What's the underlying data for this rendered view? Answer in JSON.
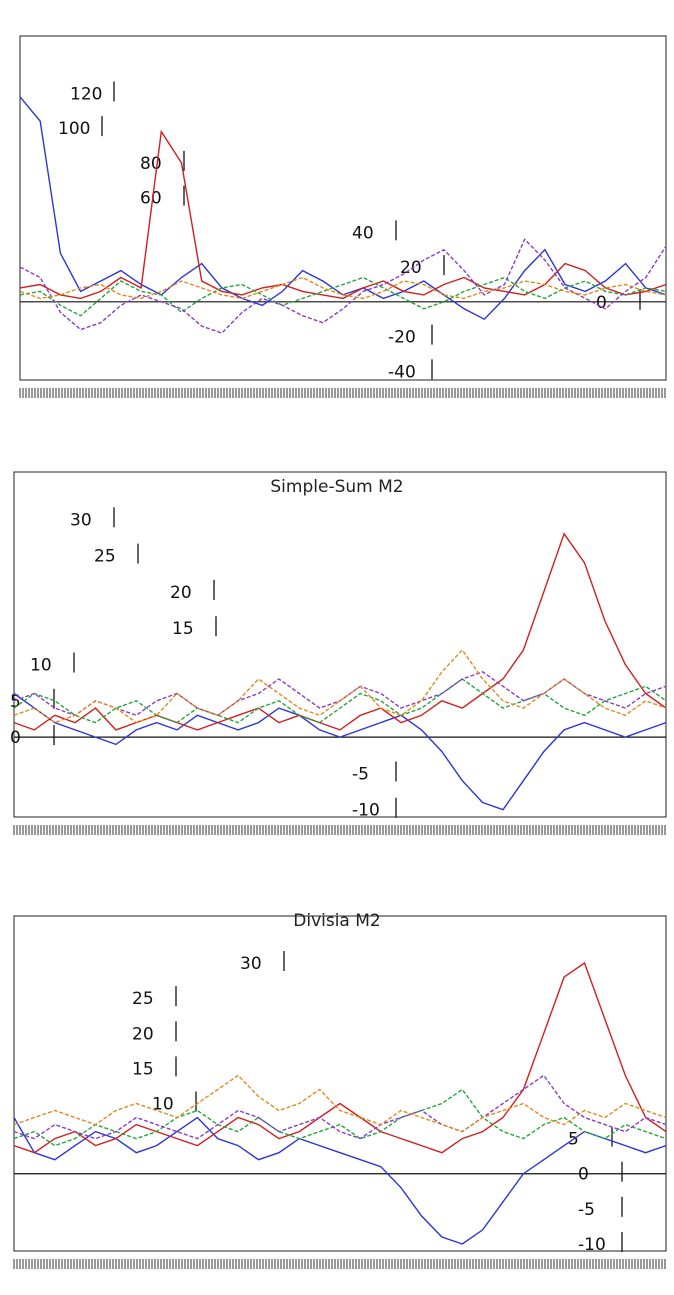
{
  "chart_data": [
    {
      "type": "line",
      "title": "",
      "yticks": [
        "120",
        "100",
        "80",
        "60",
        "40",
        "20",
        "0",
        "-20",
        "-40"
      ],
      "ylim": [
        -45,
        130
      ],
      "grid": false,
      "colors": {
        "blue": "#2b36d6",
        "red": "#d11f1f",
        "green": "#23a63c",
        "purple": "#8a3cc8",
        "orange": "#e08a1e",
        "gray": "#7a7a7a"
      },
      "series": [
        {
          "color": "#2b36d6",
          "values": [
            118,
            104,
            28,
            6,
            12,
            18,
            10,
            4,
            14,
            22,
            8,
            2,
            -2,
            6,
            18,
            12,
            4,
            8,
            2,
            6,
            12,
            4,
            -4,
            -10,
            2,
            18,
            30,
            10,
            6,
            12,
            22,
            8,
            4
          ]
        },
        {
          "color": "#d11f1f",
          "values": [
            8,
            10,
            4,
            2,
            6,
            14,
            8,
            98,
            80,
            12,
            6,
            4,
            8,
            10,
            6,
            4,
            2,
            8,
            12,
            6,
            4,
            10,
            14,
            8,
            6,
            4,
            10,
            22,
            18,
            8,
            4,
            6,
            10
          ]
        },
        {
          "color": "#23a63c",
          "values": [
            4,
            6,
            -2,
            -8,
            2,
            12,
            6,
            4,
            -6,
            2,
            8,
            10,
            4,
            -2,
            2,
            6,
            10,
            14,
            8,
            2,
            -4,
            0,
            6,
            10,
            14,
            6,
            2,
            8,
            12,
            6,
            4,
            8,
            6
          ]
        },
        {
          "color": "#8a3cc8",
          "values": [
            20,
            14,
            -6,
            -16,
            -12,
            -2,
            4,
            0,
            -4,
            -14,
            -18,
            -6,
            2,
            -2,
            -8,
            -12,
            -4,
            6,
            10,
            16,
            24,
            30,
            18,
            4,
            10,
            36,
            24,
            8,
            2,
            -4,
            6,
            14,
            32
          ]
        },
        {
          "color": "#e08a1e",
          "values": [
            6,
            2,
            4,
            8,
            10,
            4,
            2,
            6,
            12,
            8,
            4,
            2,
            6,
            10,
            14,
            8,
            4,
            2,
            6,
            12,
            10,
            4,
            2,
            6,
            8,
            12,
            10,
            6,
            4,
            8,
            10,
            6,
            4
          ]
        }
      ]
    },
    {
      "type": "line",
      "title": "Simple-Sum M2",
      "yticks": [
        "30",
        "25",
        "20",
        "15",
        "10",
        "5",
        "0",
        "-5",
        "-10"
      ],
      "ylim": [
        -11,
        31
      ],
      "grid": false,
      "series": [
        {
          "color": "#2b36d6",
          "values": [
            6,
            4,
            2,
            1,
            0,
            -1,
            1,
            2,
            1,
            3,
            2,
            1,
            2,
            4,
            3,
            1,
            0,
            1,
            2,
            3,
            1,
            -2,
            -6,
            -9,
            -10,
            -6,
            -2,
            1,
            2,
            1,
            0,
            1,
            2
          ]
        },
        {
          "color": "#d11f1f",
          "values": [
            2,
            1,
            3,
            2,
            4,
            1,
            2,
            3,
            2,
            1,
            2,
            3,
            4,
            2,
            3,
            2,
            1,
            3,
            4,
            2,
            3,
            5,
            4,
            6,
            8,
            12,
            20,
            28,
            24,
            16,
            10,
            6,
            4
          ]
        },
        {
          "color": "#23a63c",
          "values": [
            4,
            6,
            5,
            3,
            2,
            4,
            5,
            3,
            2,
            4,
            3,
            2,
            4,
            5,
            3,
            2,
            4,
            6,
            5,
            3,
            4,
            6,
            8,
            6,
            4,
            5,
            6,
            4,
            3,
            5,
            6,
            7,
            5
          ]
        },
        {
          "color": "#8a3cc8",
          "values": [
            5,
            6,
            4,
            3,
            5,
            4,
            3,
            5,
            6,
            4,
            3,
            5,
            6,
            8,
            6,
            4,
            5,
            7,
            6,
            4,
            5,
            6,
            8,
            9,
            7,
            5,
            6,
            8,
            6,
            5,
            4,
            6,
            7
          ]
        },
        {
          "color": "#e08a1e",
          "values": [
            3,
            4,
            2,
            3,
            5,
            4,
            2,
            3,
            6,
            4,
            3,
            5,
            8,
            6,
            4,
            3,
            5,
            7,
            4,
            3,
            5,
            9,
            12,
            8,
            5,
            4,
            6,
            8,
            6,
            4,
            3,
            5,
            4
          ]
        }
      ]
    },
    {
      "type": "line",
      "title": "Divisia M2",
      "yticks": [
        "30",
        "25",
        "20",
        "15",
        "10",
        "5",
        "0",
        "-5",
        "-10"
      ],
      "ylim": [
        -11,
        31
      ],
      "grid": false,
      "series": [
        {
          "color": "#2b36d6",
          "values": [
            8,
            3,
            2,
            4,
            6,
            5,
            3,
            4,
            6,
            8,
            5,
            4,
            2,
            3,
            5,
            4,
            3,
            2,
            1,
            -2,
            -6,
            -9,
            -10,
            -8,
            -4,
            0,
            2,
            4,
            6,
            5,
            4,
            3,
            4
          ]
        },
        {
          "color": "#d11f1f",
          "values": [
            4,
            3,
            5,
            6,
            4,
            5,
            7,
            6,
            5,
            4,
            6,
            8,
            7,
            5,
            6,
            8,
            10,
            8,
            6,
            5,
            4,
            3,
            5,
            6,
            8,
            12,
            20,
            28,
            30,
            22,
            14,
            8,
            6
          ]
        },
        {
          "color": "#23a63c",
          "values": [
            5,
            6,
            4,
            5,
            7,
            6,
            5,
            6,
            8,
            9,
            7,
            6,
            8,
            6,
            5,
            6,
            7,
            5,
            6,
            8,
            9,
            10,
            12,
            8,
            6,
            5,
            7,
            8,
            6,
            5,
            7,
            6,
            5
          ]
        },
        {
          "color": "#8a3cc8",
          "values": [
            6,
            5,
            7,
            6,
            5,
            6,
            8,
            7,
            6,
            5,
            7,
            9,
            8,
            6,
            7,
            8,
            6,
            5,
            7,
            8,
            9,
            7,
            6,
            8,
            10,
            12,
            14,
            10,
            8,
            7,
            6,
            8,
            7
          ]
        },
        {
          "color": "#e08a1e",
          "values": [
            7,
            8,
            9,
            8,
            7,
            9,
            10,
            9,
            8,
            10,
            12,
            14,
            11,
            9,
            10,
            12,
            9,
            8,
            7,
            9,
            8,
            7,
            6,
            8,
            9,
            10,
            8,
            7,
            9,
            8,
            10,
            9,
            8
          ]
        }
      ]
    }
  ]
}
